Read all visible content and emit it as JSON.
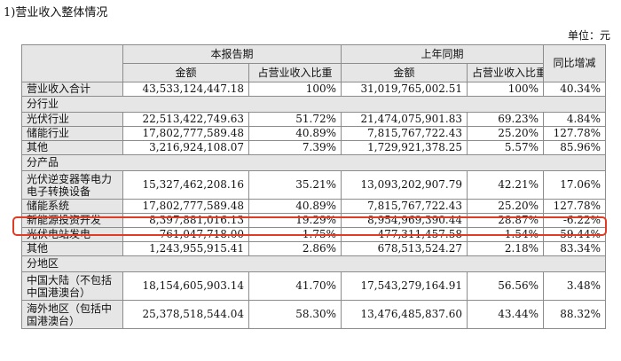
{
  "doc_title": "1)营业收入整体情况",
  "unit_label": "单位：元",
  "header": {
    "current_period": "本报告期",
    "prior_period": "上年同期",
    "yoy_change": "同比增减",
    "amount": "金额",
    "share": "占营业收入比重"
  },
  "total": {
    "label": "营业收入合计",
    "cur_amount": "43,533,124,447.18",
    "cur_share": "100%",
    "prev_amount": "31,019,765,002.51",
    "prev_share": "100%",
    "change": "40.34%"
  },
  "sections": [
    {
      "title": "分行业",
      "rows": [
        {
          "label": "光伏行业",
          "cur_amount": "22,513,422,749.63",
          "cur_share": "51.72%",
          "prev_amount": "21,474,075,901.83",
          "prev_share": "69.23%",
          "change": "4.84%"
        },
        {
          "label": "储能行业",
          "cur_amount": "17,802,777,589.48",
          "cur_share": "40.89%",
          "prev_amount": "7,815,767,722.43",
          "prev_share": "25.20%",
          "change": "127.78%"
        },
        {
          "label": "其他",
          "cur_amount": "3,216,924,108.07",
          "cur_share": "7.39%",
          "prev_amount": "1,729,921,378.25",
          "prev_share": "5.57%",
          "change": "85.96%"
        }
      ]
    },
    {
      "title": "分产品",
      "rows": [
        {
          "label": "光伏逆变器等电力电子转换设备",
          "cur_amount": "15,327,462,208.16",
          "cur_share": "35.21%",
          "prev_amount": "13,093,202,907.79",
          "prev_share": "42.21%",
          "change": "17.06%"
        },
        {
          "label": "储能系统",
          "cur_amount": "17,802,777,589.48",
          "cur_share": "40.89%",
          "prev_amount": "7,815,767,722.43",
          "prev_share": "25.20%",
          "change": "127.78%"
        },
        {
          "label": "新能源投资开发",
          "cur_amount": "8,397,881,016.13",
          "cur_share": "19.29%",
          "prev_amount": "8,954,969,390.44",
          "prev_share": "28.87%",
          "change": "-6.22%"
        },
        {
          "label": "光伏电站发电",
          "cur_amount": "761,047,718.00",
          "cur_share": "1.75%",
          "prev_amount": "477,311,457.58",
          "prev_share": "1.54%",
          "change": "59.44%"
        },
        {
          "label": "其他",
          "cur_amount": "1,243,955,915.41",
          "cur_share": "2.86%",
          "prev_amount": "678,513,524.27",
          "prev_share": "2.18%",
          "change": "83.34%"
        }
      ]
    },
    {
      "title": "分地区",
      "rows": [
        {
          "label": "中国大陆（不包括中国港澳台）",
          "cur_amount": "18,154,605,903.14",
          "cur_share": "41.70%",
          "prev_amount": "17,543,279,164.91",
          "prev_share": "56.56%",
          "change": "3.48%"
        },
        {
          "label": "海外地区（包括中国港澳台）",
          "cur_amount": "25,378,518,544.04",
          "cur_share": "58.30%",
          "prev_amount": "13,476,485,837.60",
          "prev_share": "43.44%",
          "change": "88.32%"
        }
      ]
    }
  ]
}
